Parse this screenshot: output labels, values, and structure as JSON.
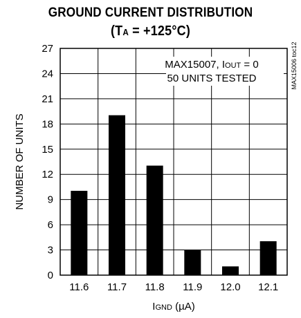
{
  "chart_data": {
    "type": "bar",
    "title_line1": "GROUND CURRENT DISTRIBUTION",
    "title_line2_prefix": "(T",
    "title_line2_sub": "A",
    "title_line2_suffix": " = +125°C)",
    "categories": [
      "11.6",
      "11.7",
      "11.8",
      "11.9",
      "12.0",
      "12.1"
    ],
    "values": [
      10,
      19,
      13,
      3,
      1,
      4
    ],
    "ylabel": "NUMBER OF UNITS",
    "xlabel_main": "I",
    "xlabel_sub": "GND",
    "xlabel_unit": " (µA)",
    "yticks": [
      0,
      3,
      6,
      9,
      12,
      15,
      18,
      21,
      24,
      27
    ],
    "ylim": [
      0,
      27
    ],
    "annotation_line1_prefix": "MAX15007, I",
    "annotation_line1_sub": "OUT",
    "annotation_line1_suffix": " = 0",
    "annotation_line2": "50 UNITS TESTED",
    "side_label": "MAX15006 toc12",
    "grid": true,
    "bar_color": "#000000"
  }
}
